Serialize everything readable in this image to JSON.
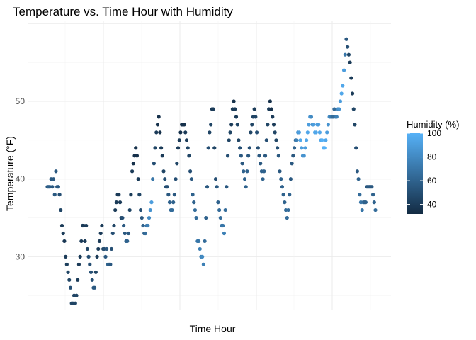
{
  "chart_data": {
    "type": "scatter",
    "title": "Temperature vs. Time Hour with Humidity",
    "xlabel": "Time Hour",
    "ylabel": "Temperature (°F)",
    "x_tick_labels": [],
    "ylim": [
      23.2,
      60.3
    ],
    "y_ticks": [
      30,
      40,
      50
    ],
    "grid": true,
    "legend": {
      "title": "Humidity (%)",
      "position": "right",
      "ticks": [
        40,
        60,
        80,
        100
      ],
      "range": [
        32,
        100
      ],
      "color_low": "#132b43",
      "color_high": "#56b1f7"
    },
    "points": [
      {
        "x": 0,
        "y": 39,
        "h": 55
      },
      {
        "x": 1,
        "y": 39,
        "h": 60
      },
      {
        "x": 2,
        "y": 39,
        "h": 58
      },
      {
        "x": 3,
        "y": 40,
        "h": 55
      },
      {
        "x": 4,
        "y": 39,
        "h": 55
      },
      {
        "x": 5,
        "y": 40,
        "h": 55
      },
      {
        "x": 6,
        "y": 38,
        "h": 55
      },
      {
        "x": 7,
        "y": 41,
        "h": 55
      },
      {
        "x": 8,
        "y": 39,
        "h": 55
      },
      {
        "x": 9,
        "y": 39,
        "h": 55
      },
      {
        "x": 10,
        "y": 38,
        "h": 50
      },
      {
        "x": 11,
        "y": 36,
        "h": 45
      },
      {
        "x": 12,
        "y": 34,
        "h": 40
      },
      {
        "x": 13,
        "y": 33,
        "h": 40
      },
      {
        "x": 14,
        "y": 32,
        "h": 38
      },
      {
        "x": 15,
        "y": 30,
        "h": 40
      },
      {
        "x": 16,
        "y": 29,
        "h": 42
      },
      {
        "x": 17,
        "y": 28,
        "h": 45
      },
      {
        "x": 18,
        "y": 27,
        "h": 45
      },
      {
        "x": 19,
        "y": 26,
        "h": 50
      },
      {
        "x": 20,
        "y": 24,
        "h": 45
      },
      {
        "x": 21,
        "y": 24,
        "h": 45
      },
      {
        "x": 22,
        "y": 25,
        "h": 45
      },
      {
        "x": 23,
        "y": 24,
        "h": 45
      },
      {
        "x": 24,
        "y": 25,
        "h": 45
      },
      {
        "x": 25,
        "y": 27,
        "h": 40
      },
      {
        "x": 26,
        "y": 29,
        "h": 40
      },
      {
        "x": 27,
        "y": 30,
        "h": 40
      },
      {
        "x": 28,
        "y": 32,
        "h": 40
      },
      {
        "x": 29,
        "y": 34,
        "h": 40
      },
      {
        "x": 30,
        "y": 34,
        "h": 40
      },
      {
        "x": 31,
        "y": 32,
        "h": 40
      },
      {
        "x": 32,
        "y": 34,
        "h": 40
      },
      {
        "x": 33,
        "y": 31,
        "h": 45
      },
      {
        "x": 34,
        "y": 30,
        "h": 50
      },
      {
        "x": 35,
        "y": 29,
        "h": 50
      },
      {
        "x": 36,
        "y": 28,
        "h": 50
      },
      {
        "x": 37,
        "y": 27,
        "h": 50
      },
      {
        "x": 38,
        "y": 26,
        "h": 55
      },
      {
        "x": 39,
        "y": 26,
        "h": 55
      },
      {
        "x": 40,
        "y": 28,
        "h": 45
      },
      {
        "x": 41,
        "y": 30,
        "h": 40
      },
      {
        "x": 42,
        "y": 31,
        "h": 40
      },
      {
        "x": 43,
        "y": 32,
        "h": 40
      },
      {
        "x": 44,
        "y": 33,
        "h": 40
      },
      {
        "x": 45,
        "y": 34,
        "h": 40
      },
      {
        "x": 46,
        "y": 31,
        "h": 45
      },
      {
        "x": 47,
        "y": 31,
        "h": 50
      },
      {
        "x": 48,
        "y": 30,
        "h": 55
      },
      {
        "x": 49,
        "y": 31,
        "h": 55
      },
      {
        "x": 50,
        "y": 29,
        "h": 60
      },
      {
        "x": 51,
        "y": 29,
        "h": 60
      },
      {
        "x": 52,
        "y": 29,
        "h": 55
      },
      {
        "x": 53,
        "y": 31,
        "h": 50
      },
      {
        "x": 54,
        "y": 33,
        "h": 50
      },
      {
        "x": 55,
        "y": 34,
        "h": 45
      },
      {
        "x": 56,
        "y": 36,
        "h": 40
      },
      {
        "x": 57,
        "y": 37,
        "h": 40
      },
      {
        "x": 58,
        "y": 38,
        "h": 40
      },
      {
        "x": 59,
        "y": 38,
        "h": 40
      },
      {
        "x": 60,
        "y": 37,
        "h": 40
      },
      {
        "x": 61,
        "y": 35,
        "h": 45
      },
      {
        "x": 62,
        "y": 35,
        "h": 50
      },
      {
        "x": 63,
        "y": 34,
        "h": 55
      },
      {
        "x": 64,
        "y": 33,
        "h": 55
      },
      {
        "x": 65,
        "y": 32,
        "h": 60
      },
      {
        "x": 66,
        "y": 32,
        "h": 60
      },
      {
        "x": 67,
        "y": 33,
        "h": 55
      },
      {
        "x": 68,
        "y": 36,
        "h": 45
      },
      {
        "x": 69,
        "y": 38,
        "h": 40
      },
      {
        "x": 70,
        "y": 41,
        "h": 40
      },
      {
        "x": 71,
        "y": 42,
        "h": 35
      },
      {
        "x": 72,
        "y": 43,
        "h": 35
      },
      {
        "x": 73,
        "y": 44,
        "h": 35
      },
      {
        "x": 74,
        "y": 43,
        "h": 35
      },
      {
        "x": 75,
        "y": 40,
        "h": 40
      },
      {
        "x": 76,
        "y": 38,
        "h": 45
      },
      {
        "x": 77,
        "y": 36,
        "h": 50
      },
      {
        "x": 78,
        "y": 35,
        "h": 55
      },
      {
        "x": 79,
        "y": 34,
        "h": 60
      },
      {
        "x": 80,
        "y": 33,
        "h": 60
      },
      {
        "x": 81,
        "y": 33,
        "h": 65
      },
      {
        "x": 82,
        "y": 34,
        "h": 70
      },
      {
        "x": 83,
        "y": 34,
        "h": 75
      },
      {
        "x": 84,
        "y": 35,
        "h": 80
      },
      {
        "x": 85,
        "y": 36,
        "h": 85
      },
      {
        "x": 86,
        "y": 37,
        "h": 90
      },
      {
        "x": 87,
        "y": 40,
        "h": 70
      },
      {
        "x": 88,
        "y": 42,
        "h": 50
      },
      {
        "x": 89,
        "y": 44,
        "h": 45
      },
      {
        "x": 90,
        "y": 46,
        "h": 40
      },
      {
        "x": 91,
        "y": 47,
        "h": 35
      },
      {
        "x": 92,
        "y": 48,
        "h": 35
      },
      {
        "x": 93,
        "y": 46,
        "h": 35
      },
      {
        "x": 94,
        "y": 44,
        "h": 40
      },
      {
        "x": 95,
        "y": 43,
        "h": 40
      },
      {
        "x": 96,
        "y": 41,
        "h": 45
      },
      {
        "x": 97,
        "y": 40,
        "h": 50
      },
      {
        "x": 98,
        "y": 39,
        "h": 50
      },
      {
        "x": 99,
        "y": 39,
        "h": 50
      },
      {
        "x": 100,
        "y": 38,
        "h": 55
      },
      {
        "x": 101,
        "y": 37,
        "h": 60
      },
      {
        "x": 102,
        "y": 36,
        "h": 65
      },
      {
        "x": 103,
        "y": 36,
        "h": 65
      },
      {
        "x": 104,
        "y": 37,
        "h": 60
      },
      {
        "x": 105,
        "y": 38,
        "h": 55
      },
      {
        "x": 106,
        "y": 40,
        "h": 50
      },
      {
        "x": 107,
        "y": 42,
        "h": 45
      },
      {
        "x": 108,
        "y": 44,
        "h": 40
      },
      {
        "x": 109,
        "y": 45,
        "h": 40
      },
      {
        "x": 110,
        "y": 46,
        "h": 35
      },
      {
        "x": 111,
        "y": 47,
        "h": 35
      },
      {
        "x": 112,
        "y": 47,
        "h": 35
      },
      {
        "x": 113,
        "y": 47,
        "h": 35
      },
      {
        "x": 114,
        "y": 46,
        "h": 40
      },
      {
        "x": 115,
        "y": 45,
        "h": 40
      },
      {
        "x": 116,
        "y": 44,
        "h": 45
      },
      {
        "x": 117,
        "y": 43,
        "h": 45
      },
      {
        "x": 118,
        "y": 41,
        "h": 50
      },
      {
        "x": 119,
        "y": 40,
        "h": 55
      },
      {
        "x": 120,
        "y": 38,
        "h": 60
      },
      {
        "x": 121,
        "y": 37,
        "h": 60
      },
      {
        "x": 122,
        "y": 36,
        "h": 65
      },
      {
        "x": 123,
        "y": 35,
        "h": 65
      },
      {
        "x": 124,
        "y": 32,
        "h": 70
      },
      {
        "x": 125,
        "y": 32,
        "h": 70
      },
      {
        "x": 126,
        "y": 31,
        "h": 75
      },
      {
        "x": 127,
        "y": 30,
        "h": 75
      },
      {
        "x": 128,
        "y": 30,
        "h": 80
      },
      {
        "x": 129,
        "y": 29,
        "h": 75
      },
      {
        "x": 130,
        "y": 32,
        "h": 65
      },
      {
        "x": 131,
        "y": 35,
        "h": 60
      },
      {
        "x": 132,
        "y": 39,
        "h": 55
      },
      {
        "x": 133,
        "y": 44,
        "h": 50
      },
      {
        "x": 134,
        "y": 46,
        "h": 45
      },
      {
        "x": 135,
        "y": 47,
        "h": 45
      },
      {
        "x": 136,
        "y": 49,
        "h": 40
      },
      {
        "x": 137,
        "y": 49,
        "h": 40
      },
      {
        "x": 138,
        "y": 44,
        "h": 45
      },
      {
        "x": 139,
        "y": 40,
        "h": 50
      },
      {
        "x": 140,
        "y": 39,
        "h": 55
      },
      {
        "x": 141,
        "y": 37,
        "h": 60
      },
      {
        "x": 142,
        "y": 36,
        "h": 65
      },
      {
        "x": 143,
        "y": 35,
        "h": 65
      },
      {
        "x": 144,
        "y": 34,
        "h": 70
      },
      {
        "x": 145,
        "y": 34,
        "h": 70
      },
      {
        "x": 146,
        "y": 33,
        "h": 75
      },
      {
        "x": 147,
        "y": 36,
        "h": 65
      },
      {
        "x": 148,
        "y": 39,
        "h": 55
      },
      {
        "x": 149,
        "y": 43,
        "h": 50
      },
      {
        "x": 150,
        "y": 45,
        "h": 45
      },
      {
        "x": 151,
        "y": 46,
        "h": 45
      },
      {
        "x": 152,
        "y": 47,
        "h": 40
      },
      {
        "x": 153,
        "y": 49,
        "h": 40
      },
      {
        "x": 154,
        "y": 50,
        "h": 35
      },
      {
        "x": 155,
        "y": 49,
        "h": 40
      },
      {
        "x": 156,
        "y": 48,
        "h": 40
      },
      {
        "x": 157,
        "y": 47,
        "h": 45
      },
      {
        "x": 158,
        "y": 45,
        "h": 45
      },
      {
        "x": 159,
        "y": 44,
        "h": 50
      },
      {
        "x": 160,
        "y": 43,
        "h": 55
      },
      {
        "x": 161,
        "y": 42,
        "h": 55
      },
      {
        "x": 162,
        "y": 41,
        "h": 60
      },
      {
        "x": 163,
        "y": 40,
        "h": 60
      },
      {
        "x": 164,
        "y": 39,
        "h": 60
      },
      {
        "x": 165,
        "y": 41,
        "h": 60
      },
      {
        "x": 166,
        "y": 43,
        "h": 55
      },
      {
        "x": 167,
        "y": 44,
        "h": 50
      },
      {
        "x": 168,
        "y": 46,
        "h": 45
      },
      {
        "x": 169,
        "y": 47,
        "h": 45
      },
      {
        "x": 170,
        "y": 48,
        "h": 45
      },
      {
        "x": 171,
        "y": 49,
        "h": 40
      },
      {
        "x": 172,
        "y": 48,
        "h": 45
      },
      {
        "x": 173,
        "y": 46,
        "h": 50
      },
      {
        "x": 174,
        "y": 44,
        "h": 50
      },
      {
        "x": 175,
        "y": 43,
        "h": 55
      },
      {
        "x": 176,
        "y": 42,
        "h": 55
      },
      {
        "x": 177,
        "y": 41,
        "h": 60
      },
      {
        "x": 178,
        "y": 40,
        "h": 60
      },
      {
        "x": 179,
        "y": 41,
        "h": 60
      },
      {
        "x": 180,
        "y": 43,
        "h": 55
      },
      {
        "x": 181,
        "y": 45,
        "h": 50
      },
      {
        "x": 182,
        "y": 47,
        "h": 45
      },
      {
        "x": 183,
        "y": 49,
        "h": 40
      },
      {
        "x": 184,
        "y": 50,
        "h": 35
      },
      {
        "x": 185,
        "y": 49,
        "h": 35
      },
      {
        "x": 186,
        "y": 48,
        "h": 40
      },
      {
        "x": 187,
        "y": 47,
        "h": 40
      },
      {
        "x": 188,
        "y": 46,
        "h": 45
      },
      {
        "x": 189,
        "y": 45,
        "h": 45
      },
      {
        "x": 190,
        "y": 44,
        "h": 50
      },
      {
        "x": 191,
        "y": 43,
        "h": 55
      },
      {
        "x": 192,
        "y": 41,
        "h": 55
      },
      {
        "x": 193,
        "y": 40,
        "h": 60
      },
      {
        "x": 194,
        "y": 39,
        "h": 60
      },
      {
        "x": 195,
        "y": 38,
        "h": 60
      },
      {
        "x": 196,
        "y": 37,
        "h": 60
      },
      {
        "x": 197,
        "y": 36,
        "h": 65
      },
      {
        "x": 198,
        "y": 35,
        "h": 65
      },
      {
        "x": 199,
        "y": 36,
        "h": 65
      },
      {
        "x": 200,
        "y": 38,
        "h": 60
      },
      {
        "x": 201,
        "y": 40,
        "h": 55
      },
      {
        "x": 202,
        "y": 42,
        "h": 55
      },
      {
        "x": 203,
        "y": 43,
        "h": 55
      },
      {
        "x": 204,
        "y": 44,
        "h": 60
      },
      {
        "x": 205,
        "y": 45,
        "h": 65
      },
      {
        "x": 206,
        "y": 45,
        "h": 75
      },
      {
        "x": 207,
        "y": 46,
        "h": 85
      },
      {
        "x": 208,
        "y": 46,
        "h": 90
      },
      {
        "x": 209,
        "y": 45,
        "h": 95
      },
      {
        "x": 210,
        "y": 44,
        "h": 90
      },
      {
        "x": 211,
        "y": 43,
        "h": 85
      },
      {
        "x": 212,
        "y": 43,
        "h": 85
      },
      {
        "x": 213,
        "y": 44,
        "h": 90
      },
      {
        "x": 214,
        "y": 45,
        "h": 95
      },
      {
        "x": 215,
        "y": 46,
        "h": 95
      },
      {
        "x": 216,
        "y": 47,
        "h": 90
      },
      {
        "x": 217,
        "y": 48,
        "h": 85
      },
      {
        "x": 218,
        "y": 48,
        "h": 80
      },
      {
        "x": 219,
        "y": 47,
        "h": 85
      },
      {
        "x": 220,
        "y": 47,
        "h": 90
      },
      {
        "x": 221,
        "y": 46,
        "h": 95
      },
      {
        "x": 222,
        "y": 46,
        "h": 95
      },
      {
        "x": 223,
        "y": 47,
        "h": 90
      },
      {
        "x": 224,
        "y": 47,
        "h": 90
      },
      {
        "x": 225,
        "y": 46,
        "h": 95
      },
      {
        "x": 226,
        "y": 45,
        "h": 95
      },
      {
        "x": 227,
        "y": 45,
        "h": 100
      },
      {
        "x": 228,
        "y": 44,
        "h": 100
      },
      {
        "x": 229,
        "y": 44,
        "h": 100
      },
      {
        "x": 230,
        "y": 45,
        "h": 95
      },
      {
        "x": 231,
        "y": 46,
        "h": 90
      },
      {
        "x": 232,
        "y": 47,
        "h": 85
      },
      {
        "x": 233,
        "y": 48,
        "h": 80
      },
      {
        "x": 234,
        "y": 48,
        "h": 75
      },
      {
        "x": 235,
        "y": 48,
        "h": 70
      },
      {
        "x": 236,
        "y": 48,
        "h": 65
      },
      {
        "x": 237,
        "y": 49,
        "h": 65
      },
      {
        "x": 238,
        "y": 48,
        "h": 70
      },
      {
        "x": 239,
        "y": 48,
        "h": 75
      },
      {
        "x": 240,
        "y": 49,
        "h": 80
      },
      {
        "x": 241,
        "y": 49,
        "h": 85
      },
      {
        "x": 242,
        "y": 50,
        "h": 90
      },
      {
        "x": 243,
        "y": 51,
        "h": 95
      },
      {
        "x": 244,
        "y": 52,
        "h": 95
      },
      {
        "x": 245,
        "y": 54,
        "h": 90
      },
      {
        "x": 246,
        "y": 56,
        "h": 70
      },
      {
        "x": 247,
        "y": 58,
        "h": 55
      },
      {
        "x": 248,
        "y": 57,
        "h": 50
      },
      {
        "x": 249,
        "y": 56,
        "h": 45
      },
      {
        "x": 250,
        "y": 55,
        "h": 40
      },
      {
        "x": 251,
        "y": 53,
        "h": 40
      },
      {
        "x": 252,
        "y": 51,
        "h": 40
      },
      {
        "x": 253,
        "y": 49,
        "h": 45
      },
      {
        "x": 254,
        "y": 47,
        "h": 45
      },
      {
        "x": 255,
        "y": 44,
        "h": 50
      },
      {
        "x": 256,
        "y": 41,
        "h": 55
      },
      {
        "x": 257,
        "y": 40,
        "h": 60
      },
      {
        "x": 258,
        "y": 38,
        "h": 65
      },
      {
        "x": 259,
        "y": 37,
        "h": 70
      },
      {
        "x": 260,
        "y": 36,
        "h": 70
      },
      {
        "x": 261,
        "y": 37,
        "h": 65
      },
      {
        "x": 262,
        "y": 37,
        "h": 60
      },
      {
        "x": 263,
        "y": 37,
        "h": 60
      },
      {
        "x": 264,
        "y": 39,
        "h": 55
      },
      {
        "x": 265,
        "y": 39,
        "h": 55
      },
      {
        "x": 266,
        "y": 39,
        "h": 55
      },
      {
        "x": 267,
        "y": 39,
        "h": 55
      },
      {
        "x": 268,
        "y": 39,
        "h": 55
      },
      {
        "x": 269,
        "y": 38,
        "h": 60
      },
      {
        "x": 270,
        "y": 37,
        "h": 60
      },
      {
        "x": 271,
        "y": 36,
        "h": 65
      }
    ]
  }
}
